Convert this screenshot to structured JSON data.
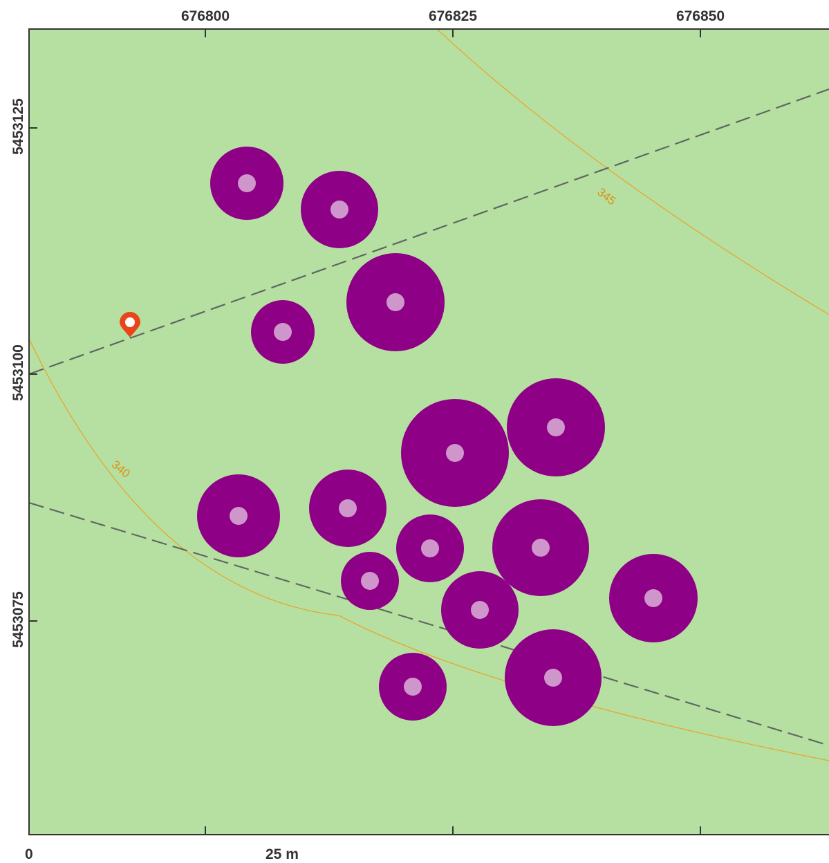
{
  "map": {
    "colors": {
      "background": "#b6e0a1",
      "tree_crown": "#8e0085",
      "tree_center": "#cf96cc",
      "contour": "#e8a52a",
      "contour_label": "#e08e12",
      "road": "#5f6660",
      "marker": "#e8461a",
      "frame": "#333333"
    },
    "x_ticks": [
      "676800",
      "676825",
      "676850"
    ],
    "y_ticks": [
      "5453125",
      "5453100",
      "5453075"
    ],
    "contours": [
      {
        "label": "345"
      },
      {
        "label": "340"
      }
    ],
    "scale_bar": {
      "start_label": "0",
      "end_label": "25 m"
    },
    "marker_icon": "location-pin-icon"
  }
}
